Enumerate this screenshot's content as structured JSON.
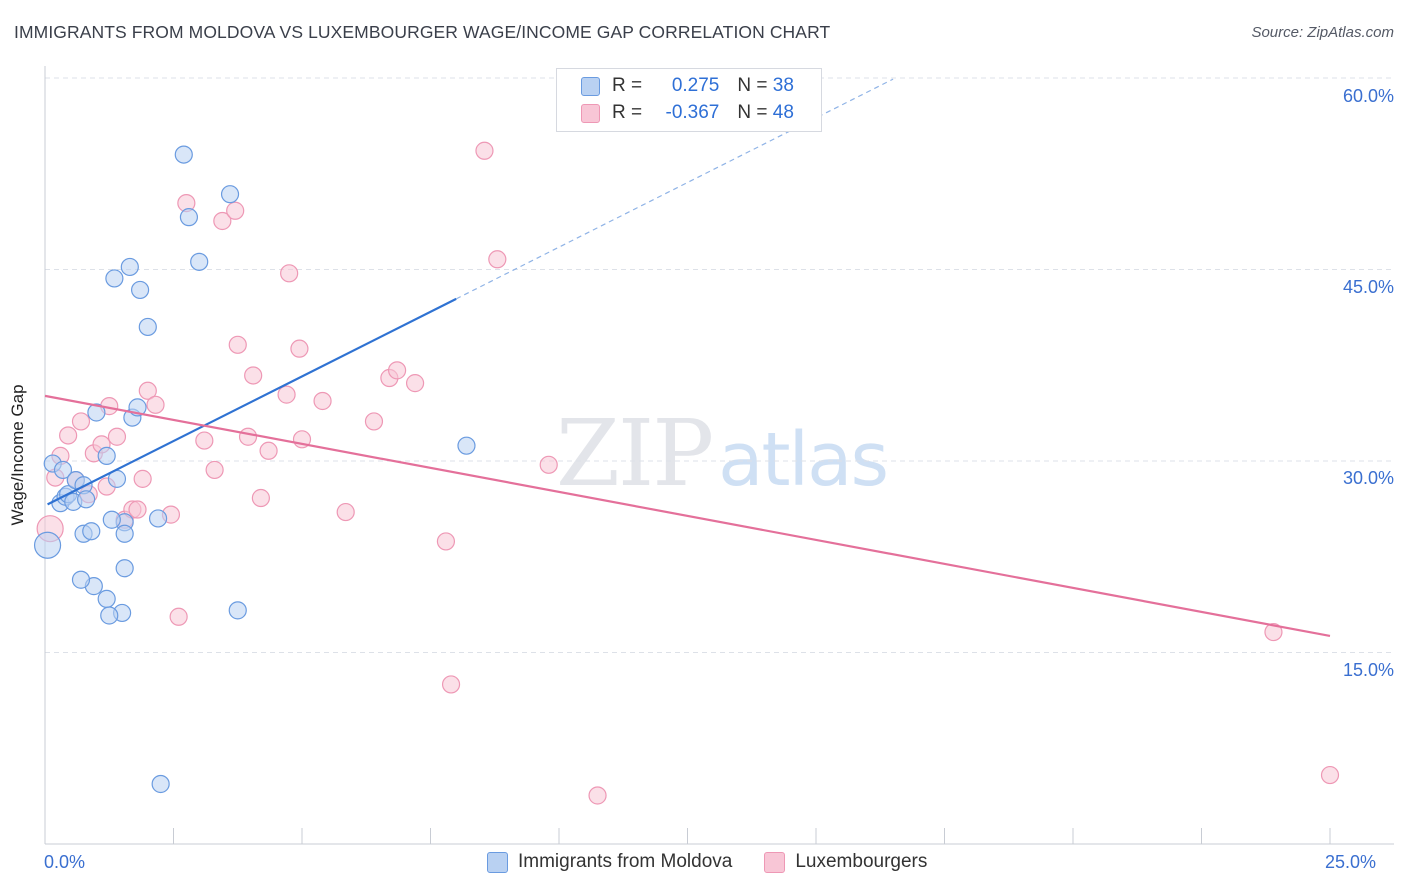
{
  "title": "IMMIGRANTS FROM MOLDOVA VS LUXEMBOURGER WAGE/INCOME GAP CORRELATION CHART",
  "source": "Source: ZipAtlas.com",
  "watermark": {
    "zip": "ZIP",
    "atlas": "atlas"
  },
  "legend": {
    "rows": [
      {
        "r_label": "R = ",
        "r_value": "0.275",
        "n_label": "N = ",
        "n_value": "38"
      },
      {
        "r_label": "R = ",
        "r_value": "-0.367",
        "n_label": "N = ",
        "n_value": "48"
      }
    ]
  },
  "bottom_legend": [
    "Immigrants from Moldova",
    "Luxembourgers"
  ],
  "colors": {
    "blue": "#6a9be0",
    "blue_fill": "#b9d1f2",
    "blue_line": "#2f72d2",
    "pink": "#ee98b5",
    "pink_fill": "#f8c6d6",
    "pink_line": "#e4709a",
    "tick_text": "#3a6fd0"
  },
  "chart_data": {
    "type": "scatter",
    "title": "IMMIGRANTS FROM MOLDOVA VS LUXEMBOURGER WAGE/INCOME GAP CORRELATION CHART",
    "xlabel": "",
    "ylabel": "Wage/Income Gap",
    "xlim": [
      0,
      25
    ],
    "ylim": [
      0,
      60
    ],
    "x_tick_labels": [
      "0.0%",
      "25.0%"
    ],
    "y_ticks": [
      15,
      30,
      45,
      60
    ],
    "y_tick_labels": [
      "15.0%",
      "30.0%",
      "45.0%",
      "60.0%"
    ],
    "grid": true,
    "series": [
      {
        "name": "Immigrants from Moldova",
        "r": 0.275,
        "n": 38,
        "trend": {
          "x0": 0.05,
          "y0": 26.6,
          "x1": 8.0,
          "y1": 42.7,
          "dashed_to_x": 16.5
        },
        "points": [
          [
            0.05,
            23.4
          ],
          [
            0.15,
            29.8
          ],
          [
            0.3,
            26.7
          ],
          [
            0.35,
            29.3
          ],
          [
            0.4,
            27.2
          ],
          [
            0.45,
            27.4
          ],
          [
            0.55,
            26.8
          ],
          [
            0.6,
            28.5
          ],
          [
            0.75,
            28.1
          ],
          [
            0.8,
            27.0
          ],
          [
            0.75,
            24.3
          ],
          [
            0.9,
            24.5
          ],
          [
            1.0,
            33.8
          ],
          [
            1.2,
            30.4
          ],
          [
            1.4,
            28.6
          ],
          [
            1.55,
            25.2
          ],
          [
            1.7,
            33.4
          ],
          [
            1.8,
            34.2
          ],
          [
            1.55,
            21.6
          ],
          [
            0.95,
            20.2
          ],
          [
            1.2,
            19.2
          ],
          [
            1.5,
            18.1
          ],
          [
            0.7,
            20.7
          ],
          [
            1.25,
            17.9
          ],
          [
            2.2,
            25.5
          ],
          [
            1.35,
            44.3
          ],
          [
            1.65,
            45.2
          ],
          [
            1.85,
            43.4
          ],
          [
            2.0,
            40.5
          ],
          [
            2.7,
            54.0
          ],
          [
            2.8,
            49.1
          ],
          [
            3.0,
            45.6
          ],
          [
            3.6,
            50.9
          ],
          [
            3.75,
            18.3
          ],
          [
            8.2,
            31.2
          ],
          [
            2.25,
            4.7
          ],
          [
            1.3,
            25.4
          ],
          [
            1.55,
            24.3
          ]
        ]
      },
      {
        "name": "Luxembourgers",
        "r": -0.367,
        "n": 48,
        "trend": {
          "x0": 0.0,
          "y0": 35.1,
          "x1": 25.0,
          "y1": 16.3
        },
        "points": [
          [
            0.1,
            24.7
          ],
          [
            0.2,
            28.7
          ],
          [
            0.3,
            30.4
          ],
          [
            0.45,
            32.0
          ],
          [
            0.6,
            28.5
          ],
          [
            0.7,
            33.1
          ],
          [
            0.85,
            27.4
          ],
          [
            0.95,
            30.6
          ],
          [
            1.1,
            31.3
          ],
          [
            1.25,
            34.3
          ],
          [
            1.4,
            31.9
          ],
          [
            1.55,
            25.4
          ],
          [
            1.7,
            26.2
          ],
          [
            1.8,
            26.2
          ],
          [
            1.9,
            28.6
          ],
          [
            2.0,
            35.5
          ],
          [
            2.15,
            34.4
          ],
          [
            2.45,
            25.8
          ],
          [
            2.6,
            17.8
          ],
          [
            2.75,
            50.2
          ],
          [
            3.1,
            31.6
          ],
          [
            3.3,
            29.3
          ],
          [
            3.45,
            48.8
          ],
          [
            3.7,
            49.6
          ],
          [
            3.75,
            39.1
          ],
          [
            3.95,
            31.9
          ],
          [
            4.05,
            36.7
          ],
          [
            4.2,
            27.1
          ],
          [
            4.35,
            30.8
          ],
          [
            4.7,
            35.2
          ],
          [
            4.75,
            44.7
          ],
          [
            4.95,
            38.8
          ],
          [
            5.0,
            31.7
          ],
          [
            5.4,
            34.7
          ],
          [
            5.85,
            26.0
          ],
          [
            6.4,
            33.1
          ],
          [
            6.7,
            36.5
          ],
          [
            6.85,
            37.1
          ],
          [
            7.2,
            36.1
          ],
          [
            7.8,
            23.7
          ],
          [
            7.9,
            12.5
          ],
          [
            8.55,
            54.3
          ],
          [
            8.8,
            45.8
          ],
          [
            9.8,
            29.7
          ],
          [
            10.75,
            3.8
          ],
          [
            23.9,
            16.6
          ],
          [
            25.0,
            5.4
          ],
          [
            1.2,
            28.0
          ]
        ]
      }
    ]
  }
}
